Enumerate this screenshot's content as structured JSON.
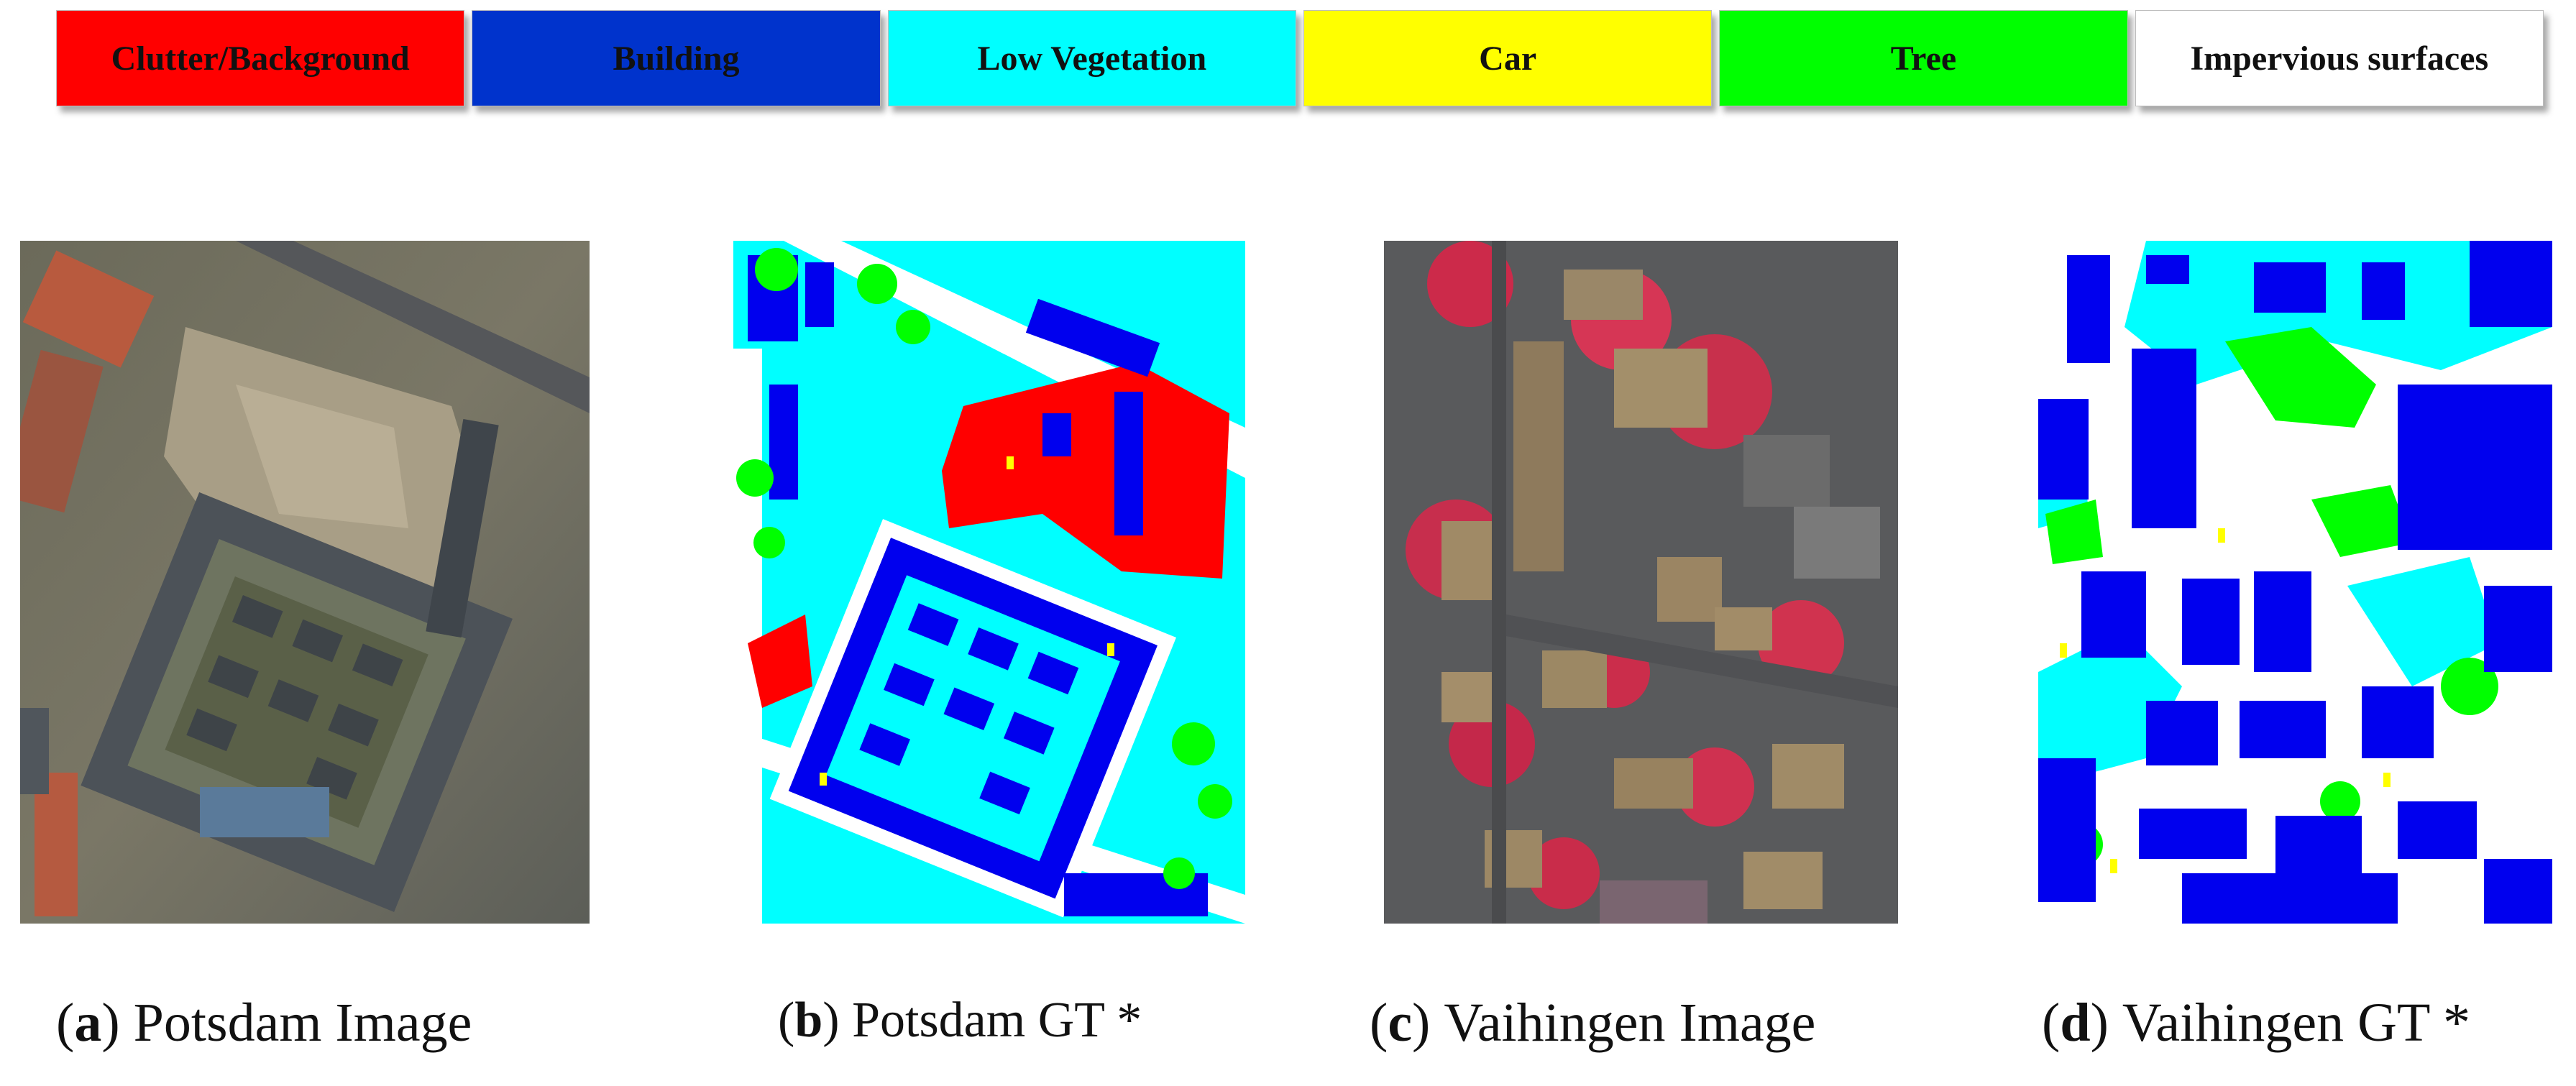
{
  "legend": {
    "items": [
      {
        "label": "Clutter/Background",
        "color": "#ff0000"
      },
      {
        "label": "Building",
        "color": "#0033cc"
      },
      {
        "label": "Low Vegetation",
        "color": "#00ffff"
      },
      {
        "label": "Car",
        "color": "#ffff00"
      },
      {
        "label": "Tree",
        "color": "#00ff00"
      },
      {
        "label": "Impervious surfaces",
        "color": "#ffffff"
      }
    ]
  },
  "panels": [
    {
      "letter": "a",
      "caption": "Potsdam Image"
    },
    {
      "letter": "b",
      "caption": "Potsdam GT *"
    },
    {
      "letter": "c",
      "caption": "Vaihingen Image"
    },
    {
      "letter": "d",
      "caption": "Vaihingen GT *"
    }
  ]
}
